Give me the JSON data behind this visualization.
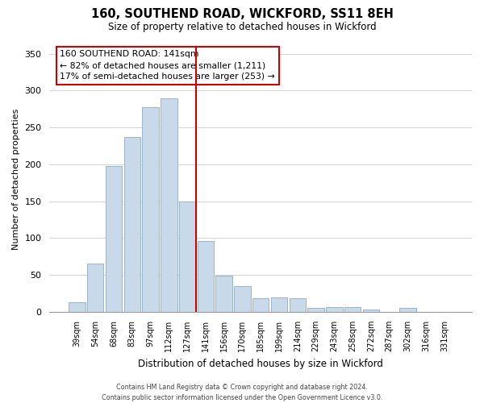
{
  "title": "160, SOUTHEND ROAD, WICKFORD, SS11 8EH",
  "subtitle": "Size of property relative to detached houses in Wickford",
  "xlabel": "Distribution of detached houses by size in Wickford",
  "ylabel": "Number of detached properties",
  "categories": [
    "39sqm",
    "54sqm",
    "68sqm",
    "83sqm",
    "97sqm",
    "112sqm",
    "127sqm",
    "141sqm",
    "156sqm",
    "170sqm",
    "185sqm",
    "199sqm",
    "214sqm",
    "229sqm",
    "243sqm",
    "258sqm",
    "272sqm",
    "287sqm",
    "302sqm",
    "316sqm",
    "331sqm"
  ],
  "values": [
    13,
    66,
    198,
    237,
    277,
    289,
    150,
    96,
    49,
    35,
    18,
    20,
    18,
    5,
    7,
    7,
    3,
    0,
    5,
    0,
    0
  ],
  "bar_color": "#c8daea",
  "bar_edge_color": "#9ab4cc",
  "highlight_line_index": 6,
  "highlight_color": "#cc0000",
  "ylim": [
    0,
    360
  ],
  "yticks": [
    0,
    50,
    100,
    150,
    200,
    250,
    300,
    350
  ],
  "annotation_title": "160 SOUTHEND ROAD: 141sqm",
  "annotation_line1": "← 82% of detached houses are smaller (1,211)",
  "annotation_line2": "17% of semi-detached houses are larger (253) →",
  "annotation_box_color": "#ffffff",
  "annotation_box_edge": "#cc0000",
  "footer_line1": "Contains HM Land Registry data © Crown copyright and database right 2024.",
  "footer_line2": "Contains public sector information licensed under the Open Government Licence v3.0.",
  "background_color": "#ffffff",
  "grid_color": "#cccccc"
}
